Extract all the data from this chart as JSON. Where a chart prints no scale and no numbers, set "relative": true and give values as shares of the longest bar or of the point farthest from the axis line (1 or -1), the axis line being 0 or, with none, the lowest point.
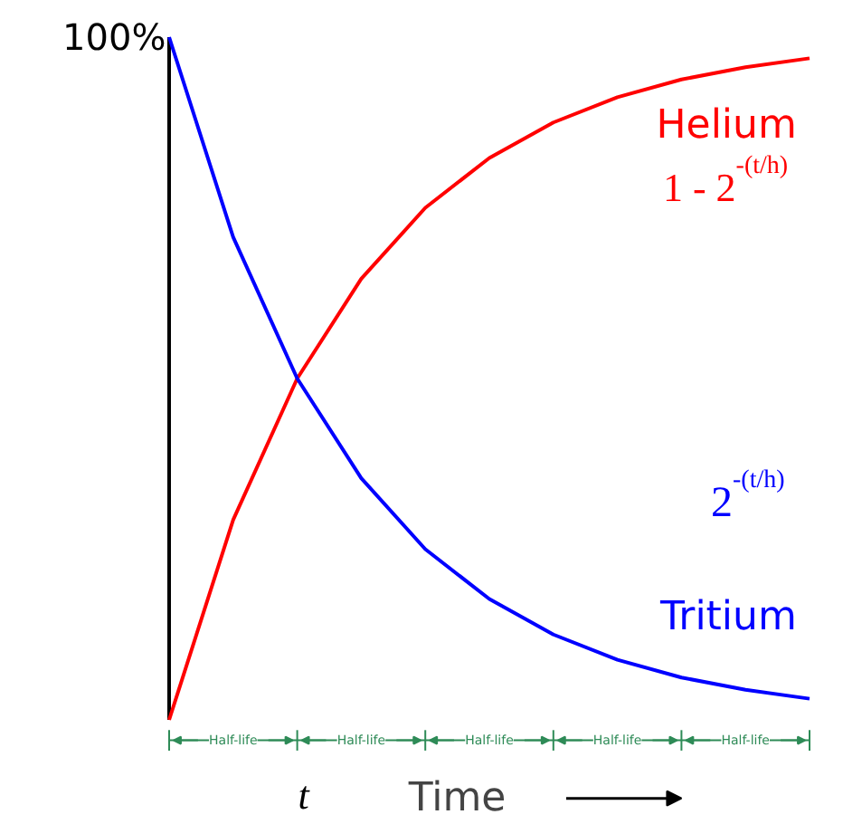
{
  "chart_data": {
    "type": "line",
    "relative": true,
    "xlabel": "Time",
    "categories": [
      null,
      null,
      null,
      null,
      null,
      null,
      null,
      null,
      null,
      null,
      null
    ],
    "series": [
      {
        "name": "Helium",
        "color": "#ff0000",
        "values": [
          0,
          0.293,
          0.5,
          0.646,
          0.75,
          0.823,
          0.875,
          0.912,
          0.938,
          0.956,
          0.969
        ]
      },
      {
        "name": "Tritium",
        "color": "#0000ff",
        "values": [
          1,
          0.707,
          0.5,
          0.354,
          0.25,
          0.177,
          0.125,
          0.088,
          0.062,
          0.044,
          0.031
        ]
      }
    ],
    "annotations": [
      "100%",
      "1 - 2$^{-(t/h)}$",
      "2$^{-(t/h)}$",
      "t",
      "Half-life",
      "Half-life",
      "Half-life",
      "Half-life",
      "Half-life"
    ],
    "grid": false,
    "marker": "none",
    "line_style": "solid"
  }
}
